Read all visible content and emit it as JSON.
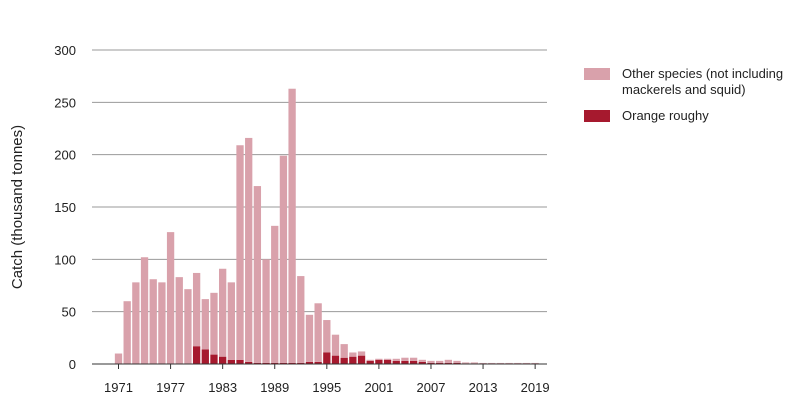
{
  "chart_data": {
    "type": "bar",
    "stacked": true,
    "title": "",
    "xlabel": "",
    "ylabel": "Catch (thousand tonnes)",
    "ylim": [
      0,
      300
    ],
    "yticks": [
      0,
      50,
      100,
      150,
      200,
      250,
      300
    ],
    "grid": true,
    "legend_position": "right",
    "x": [
      1970,
      1971,
      1972,
      1973,
      1974,
      1975,
      1976,
      1977,
      1978,
      1979,
      1980,
      1981,
      1982,
      1983,
      1984,
      1985,
      1986,
      1987,
      1988,
      1989,
      1990,
      1991,
      1992,
      1993,
      1994,
      1995,
      1996,
      1997,
      1998,
      1999,
      2000,
      2001,
      2002,
      2003,
      2004,
      2005,
      2006,
      2007,
      2008,
      2009,
      2010,
      2011,
      2012,
      2013,
      2014,
      2015,
      2016,
      2017,
      2018,
      2019
    ],
    "xtick_labels": [
      "1971",
      "1977",
      "1983",
      "1989",
      "1995",
      "2001",
      "2007",
      "2013",
      "2019"
    ],
    "series": [
      {
        "name": "Orange roughy",
        "color": "#a6192e",
        "values": [
          0,
          0,
          0,
          0,
          0,
          0,
          0,
          0,
          0,
          0.5,
          17,
          14,
          9,
          7,
          4,
          4,
          2,
          1,
          1,
          1,
          1,
          1,
          1,
          2,
          2,
          11,
          8,
          6,
          7,
          8,
          3,
          4,
          4,
          3,
          3,
          3,
          2,
          1,
          1,
          1,
          1,
          0.5,
          0.5,
          0.5,
          0.5,
          0.5,
          0.5,
          0.5,
          0.5,
          0.5
        ]
      },
      {
        "name": "Other species (not including mackerels and squid)",
        "color": "#d9a1ab",
        "values": [
          0,
          10,
          60,
          78,
          102,
          81,
          78,
          126,
          83,
          71,
          70,
          48,
          59,
          84,
          74,
          205,
          214,
          169,
          99,
          131,
          198,
          262,
          83,
          45,
          56,
          31,
          20,
          13,
          4,
          4,
          1,
          1,
          1,
          2,
          3,
          3,
          2,
          2,
          2,
          3,
          2,
          1,
          1,
          0.5,
          0.5,
          0.5,
          0.5,
          0.5,
          0.5,
          0.5
        ]
      }
    ]
  }
}
